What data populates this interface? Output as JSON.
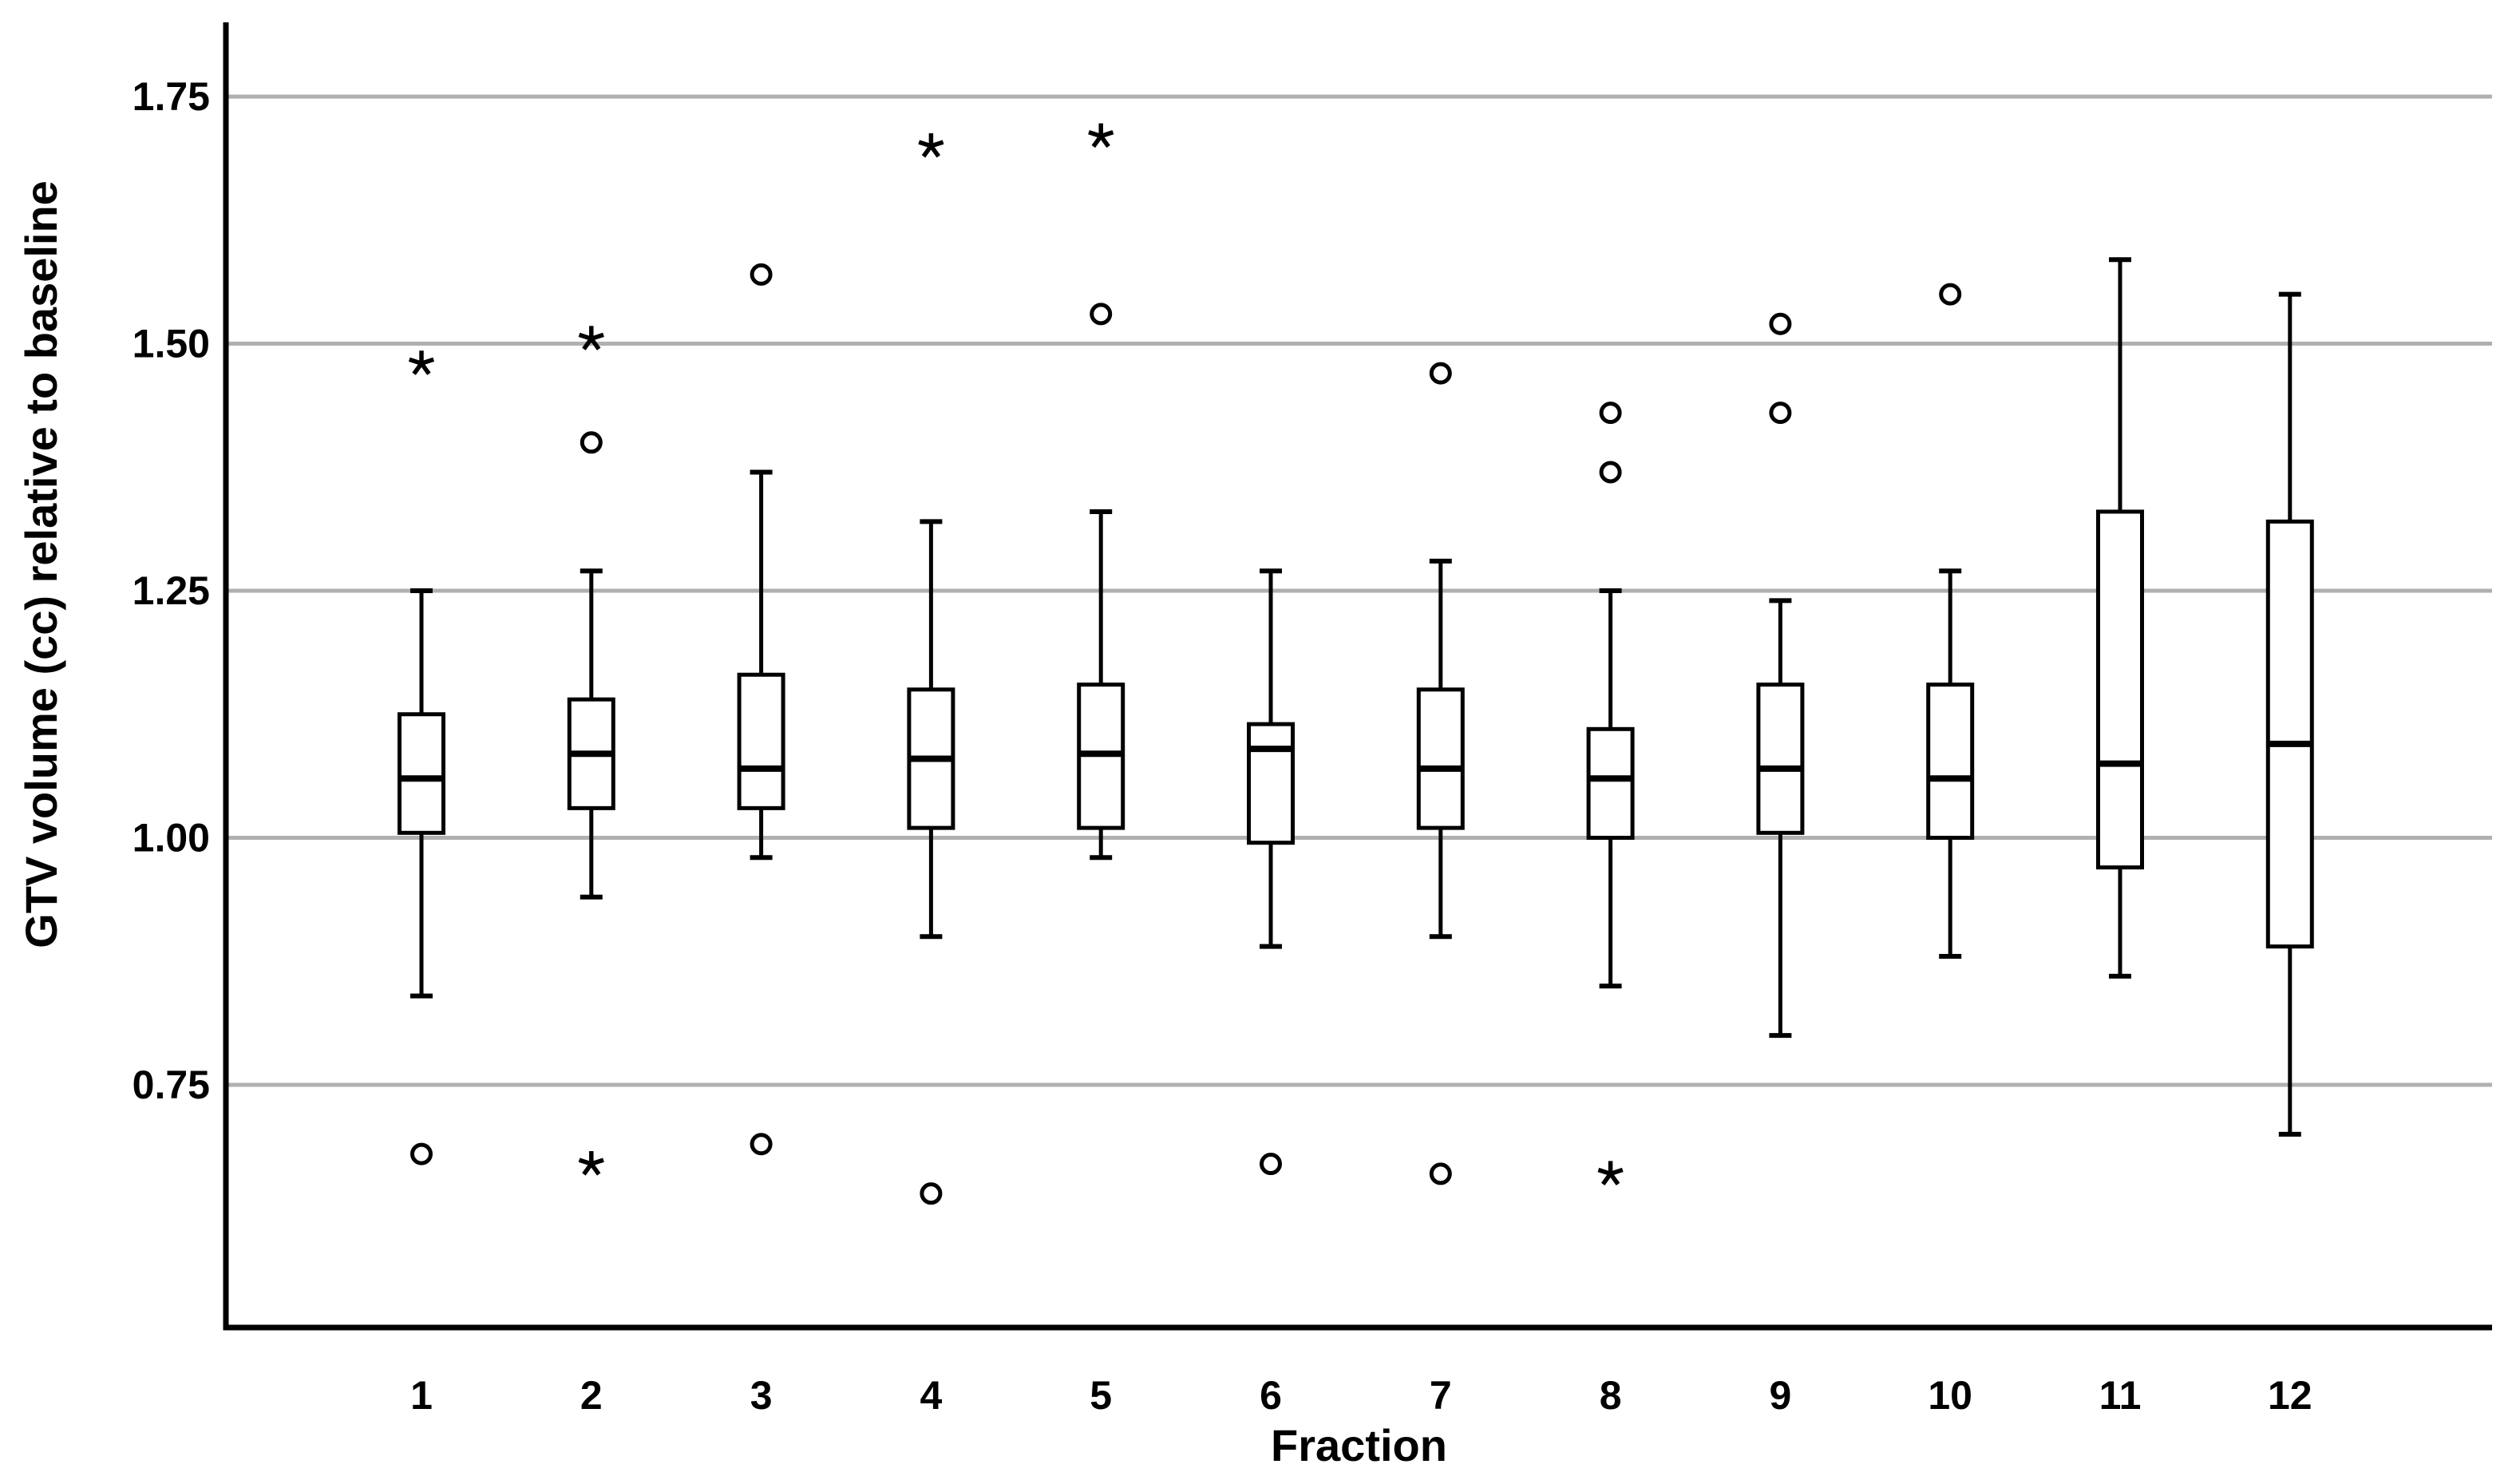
{
  "chart_data": {
    "type": "boxplot",
    "title": "",
    "xlabel": "Fraction",
    "ylabel": "GTV volume (cc) relative to baseline",
    "y_tick_labels": [
      "1.75",
      "1.50",
      "1.25",
      "1.00",
      "0.75"
    ],
    "y_tick_values": [
      1.75,
      1.5,
      1.25,
      1.0,
      0.75
    ],
    "ylim": [
      0.5,
      1.83
    ],
    "grid": "horizontal-gridlines-only",
    "legend": "none",
    "categories": [
      "1",
      "2",
      "3",
      "4",
      "5",
      "6",
      "7",
      "8",
      "9",
      "10",
      "11",
      "12"
    ],
    "boxes": [
      {
        "fraction": "1",
        "whisker_low": 0.84,
        "q1": 1.005,
        "median": 1.06,
        "q3": 1.125,
        "whisker_high": 1.25,
        "outliers_circle": [
          0.68
        ],
        "outliers_star": [
          1.48
        ]
      },
      {
        "fraction": "2",
        "whisker_low": 0.94,
        "q1": 1.03,
        "median": 1.085,
        "q3": 1.14,
        "whisker_high": 1.27,
        "outliers_circle": [
          1.4
        ],
        "outliers_star": [
          1.505,
          0.67
        ]
      },
      {
        "fraction": "3",
        "whisker_low": 0.98,
        "q1": 1.03,
        "median": 1.07,
        "q3": 1.165,
        "whisker_high": 1.37,
        "outliers_circle": [
          1.57,
          0.69
        ],
        "outliers_star": []
      },
      {
        "fraction": "4",
        "whisker_low": 0.9,
        "q1": 1.01,
        "median": 1.08,
        "q3": 1.15,
        "whisker_high": 1.32,
        "outliers_circle": [
          0.64
        ],
        "outliers_star": [
          1.7
        ]
      },
      {
        "fraction": "5",
        "whisker_low": 0.98,
        "q1": 1.01,
        "median": 1.085,
        "q3": 1.155,
        "whisker_high": 1.33,
        "outliers_circle": [
          1.53
        ],
        "outliers_star": [
          1.71
        ]
      },
      {
        "fraction": "6",
        "whisker_low": 0.89,
        "q1": 0.995,
        "median": 1.09,
        "q3": 1.115,
        "whisker_high": 1.27,
        "outliers_circle": [
          0.67
        ],
        "outliers_star": []
      },
      {
        "fraction": "7",
        "whisker_low": 0.9,
        "q1": 1.01,
        "median": 1.07,
        "q3": 1.15,
        "whisker_high": 1.28,
        "outliers_circle": [
          1.47,
          0.66
        ],
        "outliers_star": []
      },
      {
        "fraction": "8",
        "whisker_low": 0.85,
        "q1": 1.0,
        "median": 1.06,
        "q3": 1.11,
        "whisker_high": 1.25,
        "outliers_circle": [
          1.43,
          1.37
        ],
        "outliers_star": [
          0.66
        ]
      },
      {
        "fraction": "9",
        "whisker_low": 0.8,
        "q1": 1.005,
        "median": 1.07,
        "q3": 1.155,
        "whisker_high": 1.24,
        "outliers_circle": [
          1.52,
          1.43
        ],
        "outliers_star": []
      },
      {
        "fraction": "10",
        "whisker_low": 0.88,
        "q1": 1.0,
        "median": 1.06,
        "q3": 1.155,
        "whisker_high": 1.27,
        "outliers_circle": [
          1.55
        ],
        "outliers_star": []
      },
      {
        "fraction": "11",
        "whisker_low": 0.86,
        "q1": 0.97,
        "median": 1.075,
        "q3": 1.33,
        "whisker_high": 1.585,
        "outliers_circle": [],
        "outliers_star": []
      },
      {
        "fraction": "12",
        "whisker_low": 0.7,
        "q1": 0.89,
        "median": 1.095,
        "q3": 1.32,
        "whisker_high": 1.55,
        "outliers_circle": [],
        "outliers_star": []
      }
    ],
    "colors": {
      "axis": "#000000",
      "gridline": "#b0b0b0",
      "box_stroke": "#000000",
      "box_fill": "#ffffff",
      "marker": "#000000",
      "background": "#ffffff"
    }
  }
}
